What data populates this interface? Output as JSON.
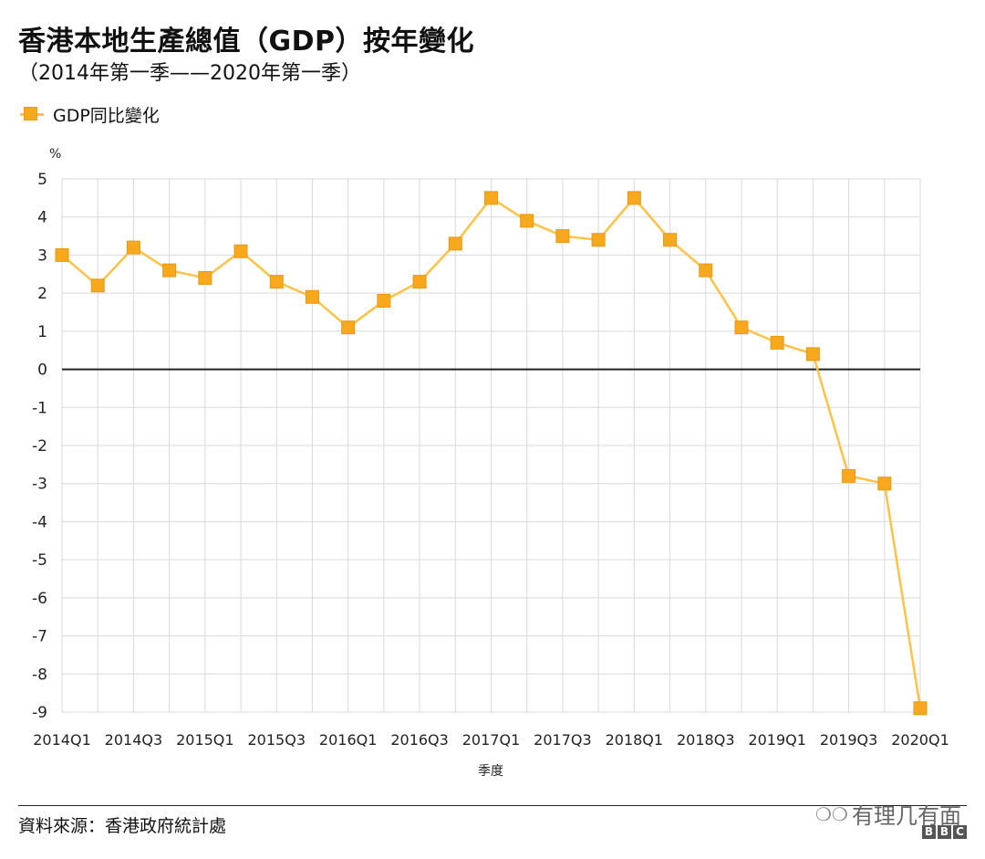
{
  "header": {
    "title": "香港本地生產總值（GDP）按年變化",
    "subtitle": "（2014年第一季——2020年第一季）"
  },
  "legend": {
    "label": "GDP同比變化"
  },
  "chart_data": {
    "type": "line",
    "title": "香港本地生產總值（GDP）按年變化",
    "subtitle": "（2014年第一季——2020年第一季）",
    "xlabel": "季度",
    "ylabel": "%",
    "ylim": [
      -9,
      5
    ],
    "yticks": [
      5,
      4,
      3,
      2,
      1,
      0,
      -1,
      -2,
      -3,
      -4,
      -5,
      -6,
      -7,
      -8,
      -9
    ],
    "grid": true,
    "legend_position": "top-left",
    "categories": [
      "2014Q1",
      "2014Q2",
      "2014Q3",
      "2014Q4",
      "2015Q1",
      "2015Q2",
      "2015Q3",
      "2015Q4",
      "2016Q1",
      "2016Q2",
      "2016Q3",
      "2016Q4",
      "2017Q1",
      "2017Q2",
      "2017Q3",
      "2017Q4",
      "2018Q1",
      "2018Q2",
      "2018Q3",
      "2018Q4",
      "2019Q1",
      "2019Q2",
      "2019Q3",
      "2019Q4",
      "2020Q1"
    ],
    "xtick_labels": [
      "2014Q1",
      "2014Q3",
      "2015Q1",
      "2015Q3",
      "2016Q1",
      "2016Q3",
      "2017Q1",
      "2017Q3",
      "2018Q1",
      "2018Q3",
      "2019Q1",
      "2019Q3",
      "2020Q1"
    ],
    "series": [
      {
        "name": "GDP同比變化",
        "values": [
          3.0,
          2.2,
          3.2,
          2.6,
          2.4,
          3.1,
          2.3,
          1.9,
          1.1,
          1.8,
          2.3,
          3.3,
          4.5,
          3.9,
          3.5,
          3.4,
          4.5,
          3.4,
          2.6,
          1.1,
          0.7,
          0.4,
          -2.8,
          -3.0,
          -8.9
        ]
      }
    ]
  },
  "footer": {
    "source": "資料來源：香港政府統計處",
    "watermark_text": "有理几有面",
    "watermark_icon": "wechat-icon",
    "bbc_letters": [
      "B",
      "B",
      "C"
    ]
  },
  "colors": {
    "line": "#FFC247",
    "marker": "#F7A81C",
    "grid": "#D9D9D9",
    "zero_line": "#222222"
  }
}
